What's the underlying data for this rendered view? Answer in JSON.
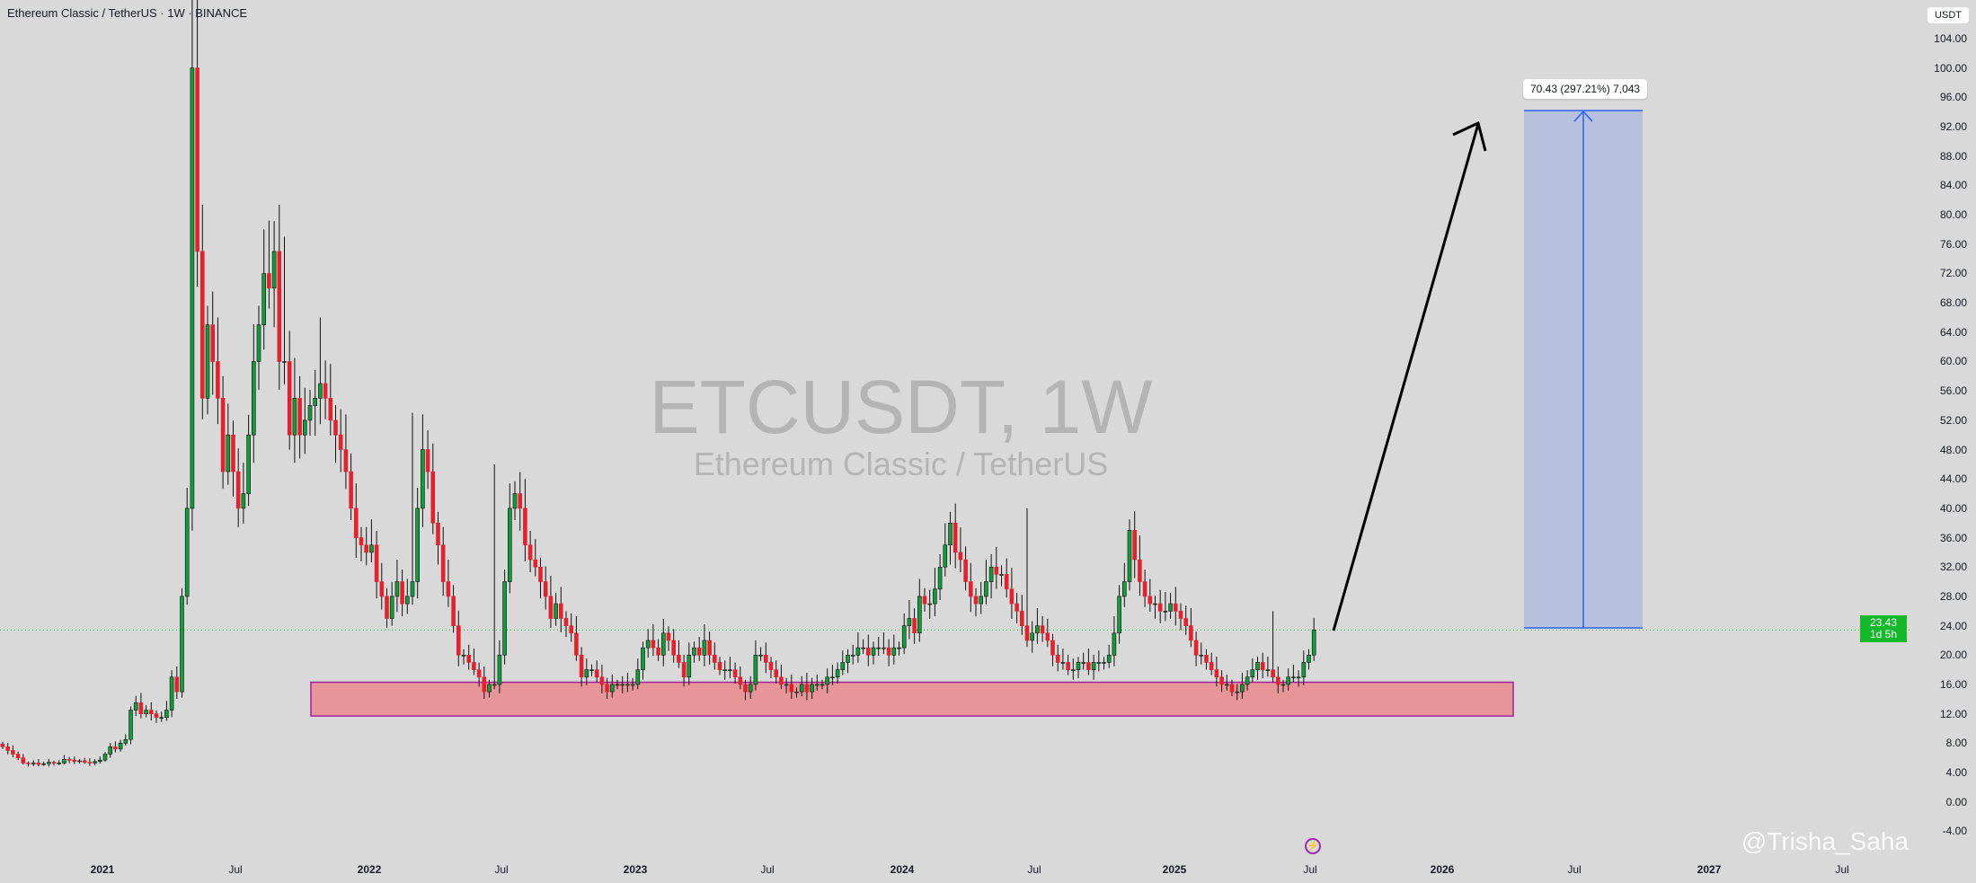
{
  "header": {
    "title": "Ethereum Classic / TetherUS · 1W · BINANCE"
  },
  "watermark": {
    "symbol": "ETCUSDT, 1W",
    "name": "Ethereum Classic / TetherUS"
  },
  "price_axis": {
    "currency": "USDT",
    "labels": [
      "104.00",
      "100.00",
      "96.00",
      "92.00",
      "88.00",
      "84.00",
      "80.00",
      "76.00",
      "72.00",
      "68.00",
      "64.00",
      "60.00",
      "56.00",
      "52.00",
      "48.00",
      "44.00",
      "40.00",
      "36.00",
      "32.00",
      "28.00",
      "24.00",
      "20.00",
      "16.00",
      "12.00",
      "8.00",
      "4.00",
      "0.00",
      "-4.00"
    ]
  },
  "current_price": {
    "value": "23.43",
    "countdown": "1d 5h",
    "color": "#13b82b"
  },
  "time_axis": [
    {
      "label": "2021",
      "bold": true
    },
    {
      "label": "Jul"
    },
    {
      "label": "2022",
      "bold": true
    },
    {
      "label": "Jul"
    },
    {
      "label": "2023",
      "bold": true
    },
    {
      "label": "Jul"
    },
    {
      "label": "2024",
      "bold": true
    },
    {
      "label": "Jul"
    },
    {
      "label": "2025",
      "bold": true
    },
    {
      "label": "Jul"
    },
    {
      "label": "2026",
      "bold": true
    },
    {
      "label": "Jul"
    },
    {
      "label": "2027",
      "bold": true
    },
    {
      "label": "Jul"
    }
  ],
  "measure": {
    "label": "70.43 (297.21%) 7,043",
    "from": 23.7,
    "to": 94.2
  },
  "support_zone": {
    "low": 11.7,
    "high": 16.3,
    "fill": "#e8959a",
    "border": "#a3209c"
  },
  "credit": "@Trisha_Saha",
  "chart_data": {
    "type": "candlestick",
    "title": "ETCUSDT, 1W",
    "interval": "1W",
    "ylim": [
      -4,
      104
    ],
    "colors": {
      "up": "#0f9d3a",
      "down": "#e5212c"
    },
    "first_week": "2020-08",
    "closes": [
      7.5,
      7.0,
      6.5,
      6.0,
      5.3,
      5.2,
      5.3,
      5.1,
      5.2,
      5.4,
      5.3,
      5.3,
      5.8,
      5.7,
      5.5,
      5.6,
      5.4,
      5.3,
      5.5,
      5.7,
      6.5,
      7.5,
      7.2,
      8.0,
      8.5,
      12.5,
      13.5,
      12.0,
      12.5,
      12.0,
      11.5,
      11.5,
      12.5,
      17,
      15,
      28,
      40,
      100,
      75,
      55,
      65,
      60,
      55,
      45,
      50,
      45,
      40,
      42,
      50,
      60,
      65,
      72,
      70,
      75,
      60,
      60,
      50,
      55,
      50,
      52,
      54,
      55,
      57,
      55,
      52,
      50,
      48,
      45,
      40,
      36,
      35,
      34,
      35,
      30,
      28,
      25,
      28,
      30,
      27,
      28,
      30,
      40,
      48,
      45,
      38,
      35,
      30,
      28,
      24,
      20,
      20,
      19,
      18,
      17,
      15,
      16,
      16,
      20,
      30,
      40,
      42,
      40,
      35,
      33,
      32,
      30,
      28,
      25,
      27,
      25,
      24,
      23,
      20,
      17,
      18,
      18,
      17,
      16,
      15,
      16,
      16,
      16,
      16,
      16,
      18,
      21,
      22,
      21,
      20,
      23,
      22,
      20,
      19,
      17,
      20,
      21,
      20,
      22,
      20,
      19,
      18,
      18,
      18,
      17,
      16,
      15,
      16,
      20,
      20,
      19,
      18,
      17,
      16,
      16,
      15,
      15,
      16,
      15,
      16,
      16,
      16,
      17,
      17,
      18,
      19,
      20,
      20,
      21,
      21,
      20,
      21,
      21,
      21,
      20,
      21,
      21,
      24,
      25,
      23,
      28,
      27,
      27,
      29,
      32,
      35,
      38,
      34,
      33,
      30,
      28,
      27,
      28,
      30,
      32,
      31,
      31,
      29,
      27,
      26,
      24,
      22,
      23,
      24,
      23,
      22,
      20,
      19,
      19,
      18,
      18,
      19,
      19,
      18,
      19,
      19,
      19,
      20,
      23,
      28,
      30,
      37,
      33,
      30,
      28,
      27,
      27,
      26,
      26,
      27,
      26,
      25,
      24,
      22,
      20,
      20,
      19,
      18,
      17,
      16,
      16,
      15,
      15,
      16,
      17,
      18,
      19,
      18,
      18,
      17,
      16,
      16,
      17,
      17,
      17,
      19,
      20,
      23.43
    ],
    "high_overrides": {
      "37": 176,
      "38": 140,
      "51": 78,
      "55": 77,
      "62": 66,
      "80": 53,
      "96": 46,
      "200": 40,
      "248": 26
    }
  }
}
